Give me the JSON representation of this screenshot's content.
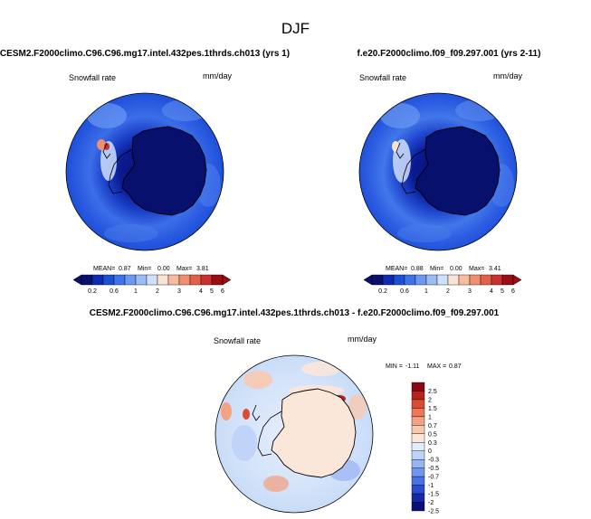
{
  "figure_title": "DJF",
  "colors": {
    "coast": "#000000",
    "abs_scale": [
      "#08106e",
      "#0c2bb2",
      "#1a4fd6",
      "#3d74ec",
      "#6b99f2",
      "#9cbcf6",
      "#cfe0fb",
      "#fbe3d4",
      "#f7bba0",
      "#f08f70",
      "#e3604c",
      "#c8322c",
      "#9a0d12"
    ],
    "diff_scale": [
      "#0a0f78",
      "#1628a8",
      "#2b4bd0",
      "#4a72e6",
      "#6f95ee",
      "#97b4f3",
      "#bed2f8",
      "#e2ecfb",
      "#fbe6da",
      "#f8c9b0",
      "#f3a283",
      "#ec785a",
      "#dc4b34",
      "#b8221a",
      "#8a0810"
    ]
  },
  "chart_data": [
    {
      "type": "heatmap",
      "projection": "polar-stereographic-south",
      "title": "CESM2.F2000climo.C96.C96.mg17.intel.432pes.1thrds.ch013 (yrs 1)",
      "variable": "Snowfall rate",
      "units": "mm/day",
      "stats": {
        "mean_label": "MEAN=",
        "mean": "0.87",
        "min_label": "Min=",
        "min": "0.00",
        "max_label": "Max=",
        "max": "3.81"
      },
      "colorbar": {
        "orientation": "horizontal",
        "ticks": [
          "0.2",
          "0.6",
          "1",
          "2",
          "3",
          "4",
          "5",
          "6"
        ],
        "levels": [
          0.2,
          0.4,
          0.6,
          0.8,
          1,
          1.5,
          2,
          2.5,
          3,
          3.5,
          4,
          5,
          6
        ]
      }
    },
    {
      "type": "heatmap",
      "projection": "polar-stereographic-south",
      "title": "f.e20.F2000climo.f09_f09.297.001 (yrs 2-11)",
      "variable": "Snowfall rate",
      "units": "mm/day",
      "stats": {
        "mean_label": "MEAN=",
        "mean": "0.88",
        "min_label": "Min=",
        "min": "0.00",
        "max_label": "Max=",
        "max": "3.41"
      },
      "colorbar": {
        "orientation": "horizontal",
        "ticks": [
          "0.2",
          "0.6",
          "1",
          "2",
          "3",
          "4",
          "5",
          "6"
        ],
        "levels": [
          0.2,
          0.4,
          0.6,
          0.8,
          1,
          1.5,
          2,
          2.5,
          3,
          3.5,
          4,
          5,
          6
        ]
      }
    },
    {
      "type": "heatmap",
      "projection": "polar-stereographic-south",
      "title": "CESM2.F2000climo.C96.C96.mg17.intel.432pes.1thrds.ch013 - f.e20.F2000climo.f09_f09.297.001",
      "variable": "Snowfall rate",
      "units": "mm/day",
      "stats": {
        "min_label": "MIN =",
        "min": "-1.11",
        "max_label": "MAX =",
        "max": "0.87"
      },
      "colorbar": {
        "orientation": "vertical",
        "ticks": [
          "2.5",
          "2",
          "1.5",
          "1",
          "0.7",
          "0.5",
          "0.3",
          "0",
          "-0.3",
          "-0.5",
          "-0.7",
          "-1",
          "-1.5",
          "-2",
          "-2.5"
        ]
      }
    }
  ]
}
